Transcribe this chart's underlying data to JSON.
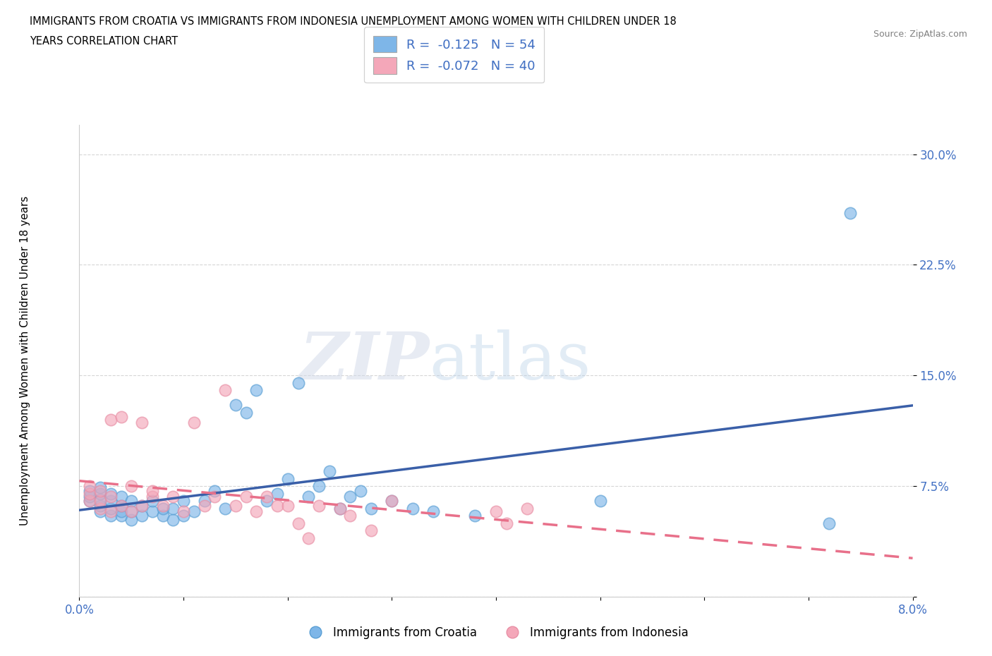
{
  "title_line1": "IMMIGRANTS FROM CROATIA VS IMMIGRANTS FROM INDONESIA UNEMPLOYMENT AMONG WOMEN WITH CHILDREN UNDER 18",
  "title_line2": "YEARS CORRELATION CHART",
  "source": "Source: ZipAtlas.com",
  "ylabel": "Unemployment Among Women with Children Under 18 years",
  "xlim": [
    0.0,
    0.08
  ],
  "ylim": [
    0.0,
    0.32
  ],
  "yticks": [
    0.0,
    0.075,
    0.15,
    0.225,
    0.3
  ],
  "ytick_labels": [
    "",
    "7.5%",
    "15.0%",
    "22.5%",
    "30.0%"
  ],
  "croatia_color": "#7EB6E8",
  "croatia_edge_color": "#5A9FD4",
  "indonesia_color": "#F4A7B9",
  "indonesia_edge_color": "#E88FA5",
  "croatia_R": "-0.125",
  "croatia_N": "54",
  "indonesia_R": "-0.072",
  "indonesia_N": "40",
  "croatia_line_color": "#3A5FA8",
  "indonesia_line_color": "#E8708A",
  "background_color": "#FFFFFF",
  "croatia_scatter_x": [
    0.001,
    0.001,
    0.001,
    0.002,
    0.002,
    0.002,
    0.002,
    0.002,
    0.003,
    0.003,
    0.003,
    0.003,
    0.004,
    0.004,
    0.004,
    0.004,
    0.005,
    0.005,
    0.005,
    0.006,
    0.006,
    0.007,
    0.007,
    0.008,
    0.008,
    0.009,
    0.009,
    0.01,
    0.01,
    0.011,
    0.012,
    0.013,
    0.014,
    0.015,
    0.016,
    0.017,
    0.018,
    0.019,
    0.02,
    0.021,
    0.022,
    0.023,
    0.024,
    0.025,
    0.026,
    0.027,
    0.028,
    0.03,
    0.032,
    0.034,
    0.038,
    0.05,
    0.072,
    0.074
  ],
  "croatia_scatter_y": [
    0.065,
    0.068,
    0.072,
    0.058,
    0.062,
    0.066,
    0.07,
    0.074,
    0.055,
    0.06,
    0.065,
    0.07,
    0.055,
    0.058,
    0.062,
    0.068,
    0.052,
    0.058,
    0.065,
    0.055,
    0.062,
    0.058,
    0.065,
    0.055,
    0.06,
    0.052,
    0.06,
    0.055,
    0.065,
    0.058,
    0.065,
    0.072,
    0.06,
    0.13,
    0.125,
    0.14,
    0.065,
    0.07,
    0.08,
    0.145,
    0.068,
    0.075,
    0.085,
    0.06,
    0.068,
    0.072,
    0.06,
    0.065,
    0.06,
    0.058,
    0.055,
    0.065,
    0.05,
    0.26
  ],
  "indonesia_scatter_x": [
    0.001,
    0.001,
    0.001,
    0.002,
    0.002,
    0.002,
    0.003,
    0.003,
    0.003,
    0.004,
    0.004,
    0.005,
    0.005,
    0.006,
    0.006,
    0.007,
    0.007,
    0.008,
    0.009,
    0.01,
    0.011,
    0.012,
    0.013,
    0.014,
    0.015,
    0.016,
    0.017,
    0.018,
    0.019,
    0.02,
    0.021,
    0.022,
    0.023,
    0.025,
    0.026,
    0.028,
    0.03,
    0.04,
    0.041,
    0.043
  ],
  "indonesia_scatter_y": [
    0.065,
    0.07,
    0.075,
    0.06,
    0.065,
    0.072,
    0.058,
    0.068,
    0.12,
    0.062,
    0.122,
    0.058,
    0.075,
    0.062,
    0.118,
    0.068,
    0.072,
    0.062,
    0.068,
    0.058,
    0.118,
    0.062,
    0.068,
    0.14,
    0.062,
    0.068,
    0.058,
    0.068,
    0.062,
    0.062,
    0.05,
    0.04,
    0.062,
    0.06,
    0.055,
    0.045,
    0.065,
    0.058,
    0.05,
    0.06
  ]
}
